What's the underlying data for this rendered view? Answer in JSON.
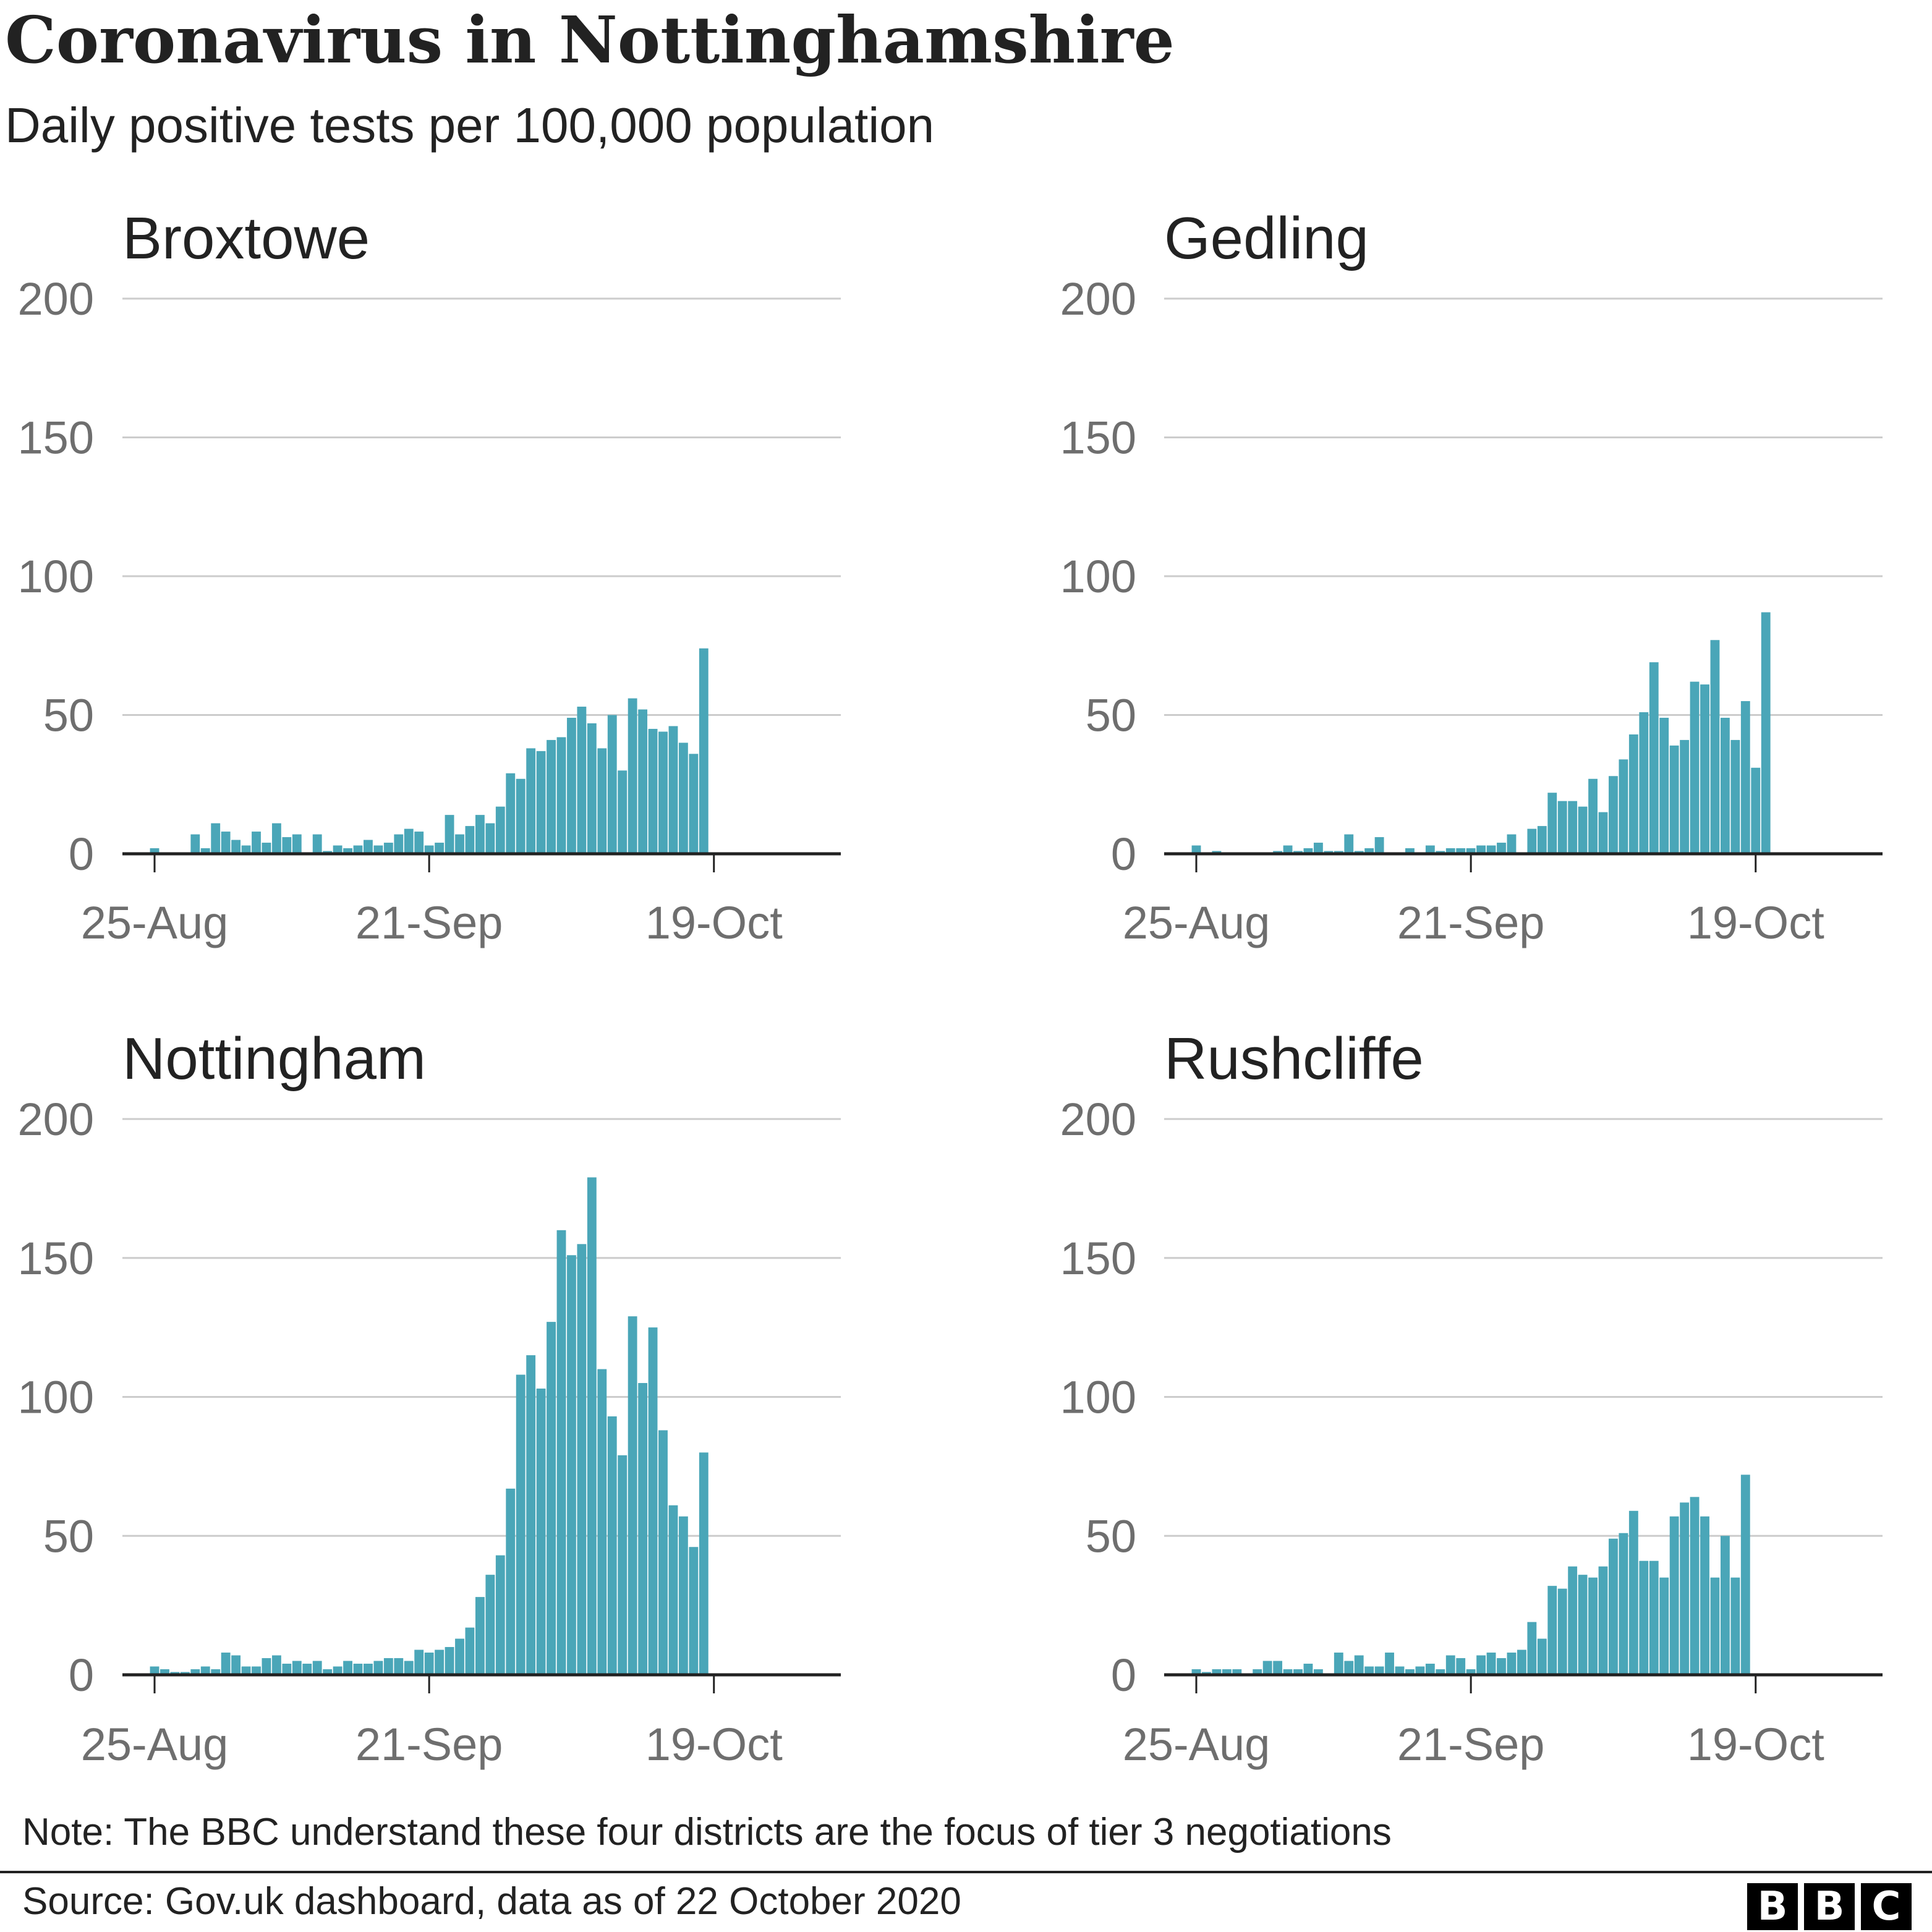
{
  "title": "Coronavirus in Nottinghamshire",
  "subtitle": "Daily positive tests per 100,000 population",
  "note": "Note: The BBC understand these four districts are the focus of tier 3 negotiations",
  "source": "Source: Gov.uk dashboard, data as of 22 October 2020",
  "brand": {
    "letters": [
      "B",
      "B",
      "C"
    ],
    "logo_color": "#000000"
  },
  "colors": {
    "bar": "#4aa6b8",
    "grid": "#cccccc",
    "axis": "#222222",
    "tick_text": "#6e6e6e"
  },
  "chart_data": [
    {
      "type": "bar",
      "title": "Broxtowe",
      "ylabel": "Daily positive tests per 100,000 population",
      "ylim": [
        0,
        200
      ],
      "yticks": [
        0,
        50,
        100,
        150,
        200
      ],
      "x_start": "24-Aug",
      "xticks": [
        {
          "label": "25-Aug",
          "day": 1
        },
        {
          "label": "21-Sep",
          "day": 28
        },
        {
          "label": "19-Oct",
          "day": 56
        }
      ],
      "values": [
        0,
        2,
        0,
        0,
        0,
        7,
        2,
        11,
        8,
        5,
        3,
        8,
        4,
        11,
        6,
        7,
        0,
        7,
        1,
        3,
        2,
        3,
        5,
        3,
        4,
        7,
        9,
        8,
        3,
        4,
        14,
        7,
        10,
        14,
        11,
        17,
        29,
        27,
        38,
        37,
        41,
        42,
        49,
        53,
        47,
        38,
        50,
        30,
        56,
        52,
        45,
        44,
        46,
        40,
        36,
        74
      ]
    },
    {
      "type": "bar",
      "title": "Gedling",
      "ylabel": "Daily positive tests per 100,000 population",
      "ylim": [
        0,
        200
      ],
      "yticks": [
        0,
        50,
        100,
        150,
        200
      ],
      "x_start": "24-Aug",
      "xticks": [
        {
          "label": "25-Aug",
          "day": 1
        },
        {
          "label": "21-Sep",
          "day": 28
        },
        {
          "label": "19-Oct",
          "day": 56
        }
      ],
      "values": [
        0,
        3,
        0,
        1,
        0,
        0,
        0,
        0,
        0,
        1,
        3,
        1,
        2,
        4,
        1,
        1,
        7,
        1,
        2,
        6,
        0,
        0,
        2,
        0,
        3,
        1,
        2,
        2,
        2,
        3,
        3,
        4,
        7,
        0,
        9,
        10,
        22,
        19,
        19,
        17,
        27,
        15,
        28,
        34,
        43,
        51,
        69,
        49,
        39,
        41,
        62,
        61,
        77,
        49,
        41,
        55,
        31,
        87
      ]
    },
    {
      "type": "bar",
      "title": "Nottingham",
      "ylabel": "Daily positive tests per 100,000 population",
      "ylim": [
        0,
        200
      ],
      "yticks": [
        0,
        50,
        100,
        150,
        200
      ],
      "x_start": "24-Aug",
      "xticks": [
        {
          "label": "25-Aug",
          "day": 1
        },
        {
          "label": "21-Sep",
          "day": 28
        },
        {
          "label": "19-Oct",
          "day": 56
        }
      ],
      "values": [
        0,
        3,
        2,
        1,
        1,
        2,
        3,
        2,
        8,
        7,
        3,
        3,
        6,
        7,
        4,
        5,
        4,
        5,
        2,
        3,
        5,
        4,
        4,
        5,
        6,
        6,
        5,
        9,
        8,
        9,
        10,
        13,
        17,
        28,
        36,
        43,
        67,
        108,
        115,
        103,
        127,
        160,
        151,
        155,
        179,
        110,
        93,
        79,
        129,
        105,
        125,
        88,
        61,
        57,
        46,
        80
      ]
    },
    {
      "type": "bar",
      "title": "Rushcliffe",
      "ylabel": "Daily positive tests per 100,000 population",
      "ylim": [
        0,
        200
      ],
      "yticks": [
        0,
        50,
        100,
        150,
        200
      ],
      "x_start": "24-Aug",
      "xticks": [
        {
          "label": "25-Aug",
          "day": 1
        },
        {
          "label": "21-Sep",
          "day": 28
        },
        {
          "label": "19-Oct",
          "day": 56
        }
      ],
      "values": [
        0,
        2,
        1,
        2,
        2,
        2,
        0,
        2,
        5,
        5,
        2,
        2,
        4,
        2,
        0,
        8,
        5,
        7,
        3,
        3,
        8,
        3,
        2,
        3,
        4,
        2,
        7,
        6,
        2,
        7,
        8,
        6,
        8,
        9,
        19,
        13,
        32,
        31,
        39,
        36,
        35,
        39,
        49,
        51,
        59,
        41,
        41,
        35,
        57,
        62,
        64,
        57,
        35,
        50,
        35,
        72
      ]
    }
  ]
}
